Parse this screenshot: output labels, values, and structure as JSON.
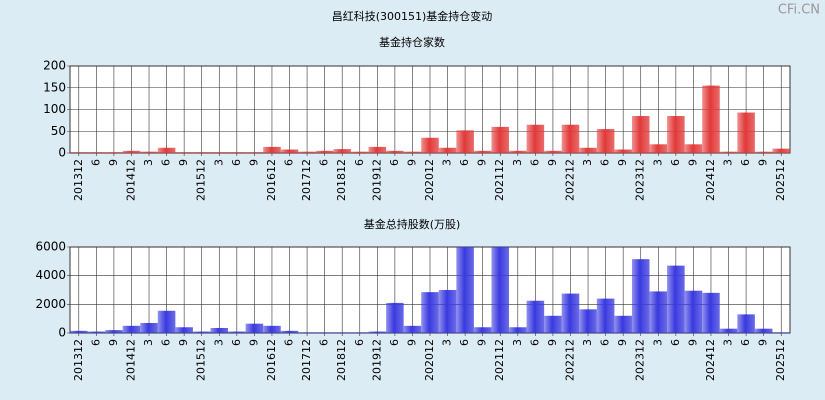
{
  "title": "昌红科技(300151)基金持仓变动",
  "watermark": "CFi.CN",
  "chart_data": [
    {
      "type": "bar",
      "title": "基金持仓家数",
      "categories": [
        "201312",
        "6",
        "9",
        "201412",
        "3",
        "6",
        "9",
        "201512",
        "3",
        "6",
        "9",
        "201612",
        "6",
        "201712",
        "6",
        "201812",
        "6",
        "201912",
        "6",
        "9",
        "202012",
        "3",
        "6",
        "9",
        "202112",
        "3",
        "6",
        "9",
        "202212",
        "3",
        "6",
        "9",
        "202312",
        "3",
        "6",
        "9",
        "202412",
        "3",
        "6",
        "9",
        "202512"
      ],
      "values": [
        2,
        2,
        2,
        5,
        3,
        12,
        2,
        2,
        2,
        2,
        2,
        14,
        8,
        3,
        5,
        9,
        3,
        14,
        5,
        3,
        35,
        12,
        52,
        5,
        60,
        5,
        65,
        5,
        65,
        12,
        55,
        8,
        85,
        20,
        85,
        20,
        155,
        3,
        93,
        3,
        10
      ],
      "color": "#e23a3a",
      "ylim": [
        0,
        200
      ],
      "yticks": [
        0,
        50,
        100,
        150,
        200
      ],
      "grid": true
    },
    {
      "type": "bar",
      "title": "基金总持股数(万股)",
      "categories": [
        "201312",
        "6",
        "9",
        "201412",
        "3",
        "6",
        "9",
        "201512",
        "3",
        "6",
        "9",
        "201612",
        "6",
        "201712",
        "6",
        "201812",
        "6",
        "201912",
        "6",
        "9",
        "202012",
        "3",
        "6",
        "9",
        "202112",
        "3",
        "6",
        "9",
        "202212",
        "3",
        "6",
        "9",
        "202312",
        "3",
        "6",
        "9",
        "202412",
        "3",
        "6",
        "9",
        "202512"
      ],
      "values": [
        150,
        100,
        200,
        500,
        700,
        1550,
        400,
        100,
        350,
        100,
        650,
        500,
        150,
        50,
        50,
        50,
        50,
        100,
        2100,
        500,
        2850,
        3000,
        6000,
        400,
        6000,
        400,
        2250,
        1200,
        2750,
        1650,
        2400,
        1200,
        5150,
        2900,
        4700,
        2950,
        2800,
        300,
        1300,
        300,
        50
      ],
      "color": "#3a3ae0",
      "ylim": [
        0,
        6000
      ],
      "yticks": [
        0,
        2000,
        4000,
        6000
      ],
      "grid": true
    }
  ]
}
